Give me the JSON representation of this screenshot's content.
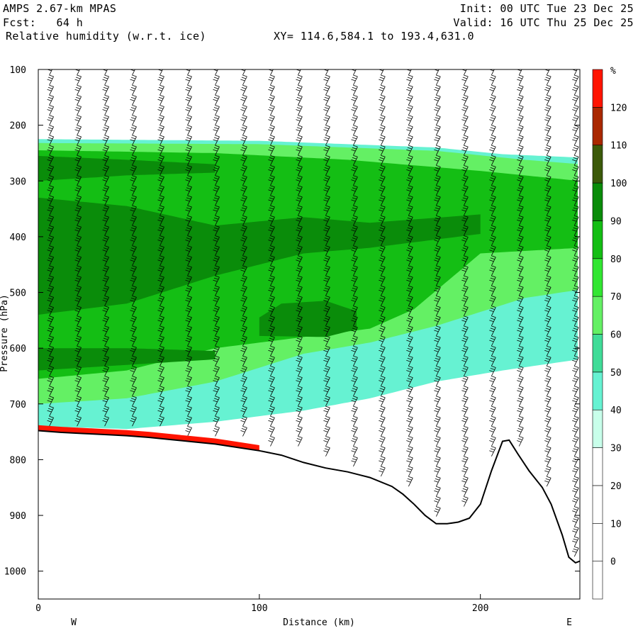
{
  "header": {
    "model": "AMPS 2.67-km MPAS",
    "forecast": "Fcst:   64 h",
    "field": "Relative humidity (w.r.t. ice)",
    "init": "Init: 00 UTC Tue 23 Dec 25",
    "valid": "Valid: 16 UTC Thu 25 Dec 25",
    "xy_range": "XY= 114.6,584.1 to 193.4,631.0"
  },
  "chart_data": {
    "type": "heatmap",
    "title": "Relative humidity (w.r.t. ice)",
    "xlabel": "Distance (km)",
    "ylabel": "Pressure (hPa)",
    "xlim": [
      0,
      245
    ],
    "ylim": [
      1050,
      100
    ],
    "x_ticks": [
      0,
      100,
      200
    ],
    "y_ticks": [
      100,
      200,
      300,
      400,
      500,
      600,
      700,
      800,
      900,
      1000
    ],
    "x_end_labels": {
      "left": "W",
      "right": "E"
    },
    "colorbar": {
      "unit": "%",
      "levels": [
        0,
        10,
        20,
        30,
        40,
        50,
        60,
        70,
        80,
        90,
        100,
        110,
        120
      ],
      "colors": [
        "#ffffff",
        "#ffffff",
        "#ffffff",
        "#ffffff",
        "#c8ffea",
        "#66f2d2",
        "#40dc98",
        "#64f064",
        "#32e632",
        "#14be14",
        "#0a8c0a",
        "#3c5a0a",
        "#aa2800",
        "#ff1400"
      ]
    },
    "terrain_profile": [
      [
        0,
        748
      ],
      [
        10,
        751
      ],
      [
        20,
        753
      ],
      [
        30,
        755
      ],
      [
        40,
        757
      ],
      [
        50,
        760
      ],
      [
        60,
        764
      ],
      [
        70,
        768
      ],
      [
        80,
        772
      ],
      [
        90,
        778
      ],
      [
        100,
        784
      ],
      [
        110,
        792
      ],
      [
        120,
        805
      ],
      [
        130,
        815
      ],
      [
        140,
        822
      ],
      [
        150,
        832
      ],
      [
        160,
        848
      ],
      [
        165,
        862
      ],
      [
        170,
        880
      ],
      [
        175,
        900
      ],
      [
        180,
        915
      ],
      [
        185,
        915
      ],
      [
        190,
        912
      ],
      [
        195,
        905
      ],
      [
        200,
        880
      ],
      [
        205,
        820
      ],
      [
        210,
        767
      ],
      [
        213,
        765
      ],
      [
        217,
        790
      ],
      [
        222,
        820
      ],
      [
        228,
        850
      ],
      [
        232,
        880
      ],
      [
        237,
        935
      ],
      [
        240,
        975
      ],
      [
        243,
        985
      ],
      [
        245,
        982
      ]
    ],
    "moist_layers": [
      {
        "level": 40,
        "top": [
          [
            0,
            225
          ],
          [
            100,
            228
          ],
          [
            180,
            240
          ],
          [
            210,
            252
          ],
          [
            245,
            258
          ]
        ],
        "bottom": [
          [
            0,
            740
          ],
          [
            40,
            745
          ],
          [
            80,
            732
          ],
          [
            120,
            712
          ],
          [
            150,
            690
          ],
          [
            180,
            660
          ],
          [
            210,
            640
          ],
          [
            245,
            620
          ]
        ]
      },
      {
        "level": 60,
        "top": [
          [
            0,
            232
          ],
          [
            100,
            234
          ],
          [
            180,
            246
          ],
          [
            220,
            262
          ],
          [
            245,
            270
          ]
        ],
        "bottom": [
          [
            0,
            700
          ],
          [
            40,
            690
          ],
          [
            80,
            660
          ],
          [
            120,
            610
          ],
          [
            150,
            590
          ],
          [
            180,
            560
          ],
          [
            220,
            510
          ],
          [
            245,
            495
          ]
        ]
      },
      {
        "level": 80,
        "top": [
          [
            0,
            245
          ],
          [
            80,
            250
          ],
          [
            140,
            262
          ],
          [
            200,
            282
          ],
          [
            245,
            300
          ]
        ],
        "bottom": [
          [
            0,
            655
          ],
          [
            40,
            640
          ],
          [
            80,
            600
          ],
          [
            120,
            580
          ],
          [
            150,
            565
          ],
          [
            170,
            530
          ],
          [
            200,
            430
          ],
          [
            245,
            420
          ]
        ]
      },
      {
        "level": 90,
        "top": [
          [
            0,
            330
          ],
          [
            40,
            345
          ],
          [
            80,
            380
          ],
          [
            120,
            365
          ],
          [
            150,
            375
          ],
          [
            200,
            360
          ]
        ],
        "bottom": [
          [
            0,
            540
          ],
          [
            40,
            520
          ],
          [
            80,
            470
          ],
          [
            120,
            430
          ],
          [
            150,
            420
          ],
          [
            200,
            395
          ]
        ]
      },
      {
        "level": 90,
        "top": [
          [
            0,
            600
          ],
          [
            40,
            600
          ],
          [
            80,
            605
          ]
        ],
        "bottom": [
          [
            0,
            640
          ],
          [
            40,
            630
          ],
          [
            80,
            620
          ]
        ]
      },
      {
        "level": 90,
        "top": [
          [
            100,
            545
          ],
          [
            110,
            520
          ],
          [
            130,
            515
          ],
          [
            145,
            535
          ]
        ],
        "bottom": [
          [
            100,
            578
          ],
          [
            130,
            580
          ],
          [
            145,
            565
          ]
        ]
      },
      {
        "level": 90,
        "top": [
          [
            0,
            255
          ],
          [
            40,
            262
          ],
          [
            80,
            270
          ]
        ],
        "bottom": [
          [
            0,
            300
          ],
          [
            40,
            290
          ],
          [
            80,
            285
          ]
        ]
      }
    ]
  }
}
